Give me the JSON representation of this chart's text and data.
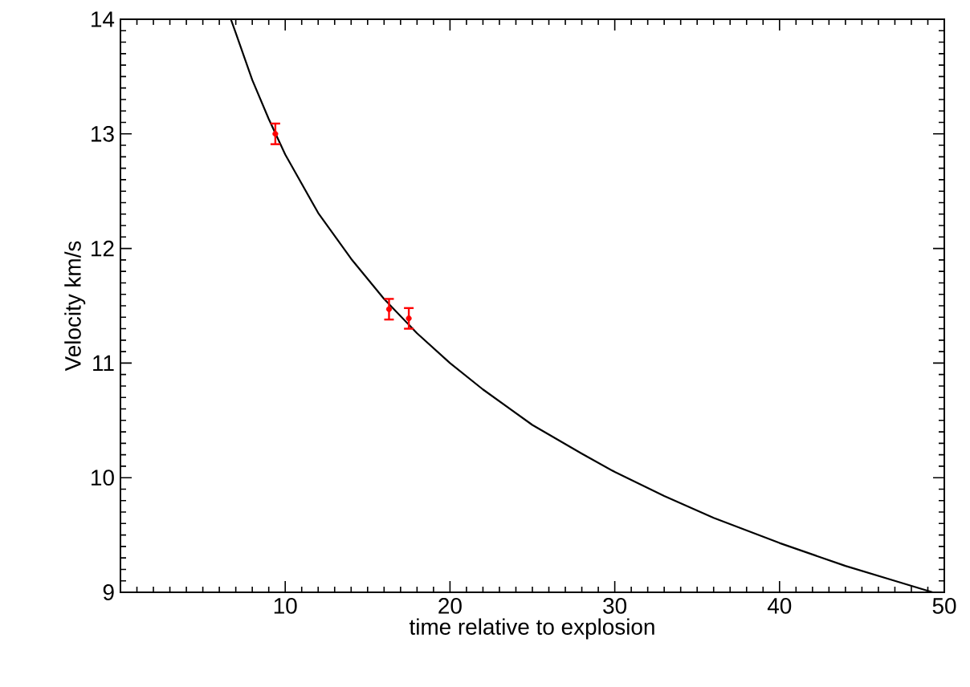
{
  "chart_data": {
    "type": "line",
    "xlabel": "time relative to explosion",
    "ylabel": "Velocity km/s",
    "xlim": [
      0,
      50
    ],
    "ylim": [
      9,
      14
    ],
    "xticks": [
      {
        "value": 0,
        "label": null
      },
      10,
      20,
      30,
      40,
      50
    ],
    "yticks": [
      9,
      10,
      11,
      12,
      13,
      14
    ],
    "series": [
      {
        "color": "#000000",
        "line_style": "solid",
        "marker": "none",
        "x": [
          6.7,
          7,
          8,
          9,
          10,
          12,
          14,
          16,
          18,
          20,
          22,
          25,
          28,
          30,
          33,
          36,
          40,
          44,
          47,
          49.3
        ],
        "values": [
          14.0,
          13.88,
          13.47,
          13.13,
          12.82,
          12.31,
          11.91,
          11.56,
          11.26,
          11.0,
          10.77,
          10.46,
          10.21,
          10.05,
          9.84,
          9.65,
          9.43,
          9.23,
          9.1,
          9.0
        ]
      },
      {
        "type": "scatter",
        "color": "#ff0000",
        "marker": "circle",
        "x": [
          9.4,
          16.3,
          17.5
        ],
        "values": [
          13.0,
          11.47,
          11.39
        ],
        "errors": [
          0.09,
          0.09,
          0.09
        ]
      }
    ]
  }
}
